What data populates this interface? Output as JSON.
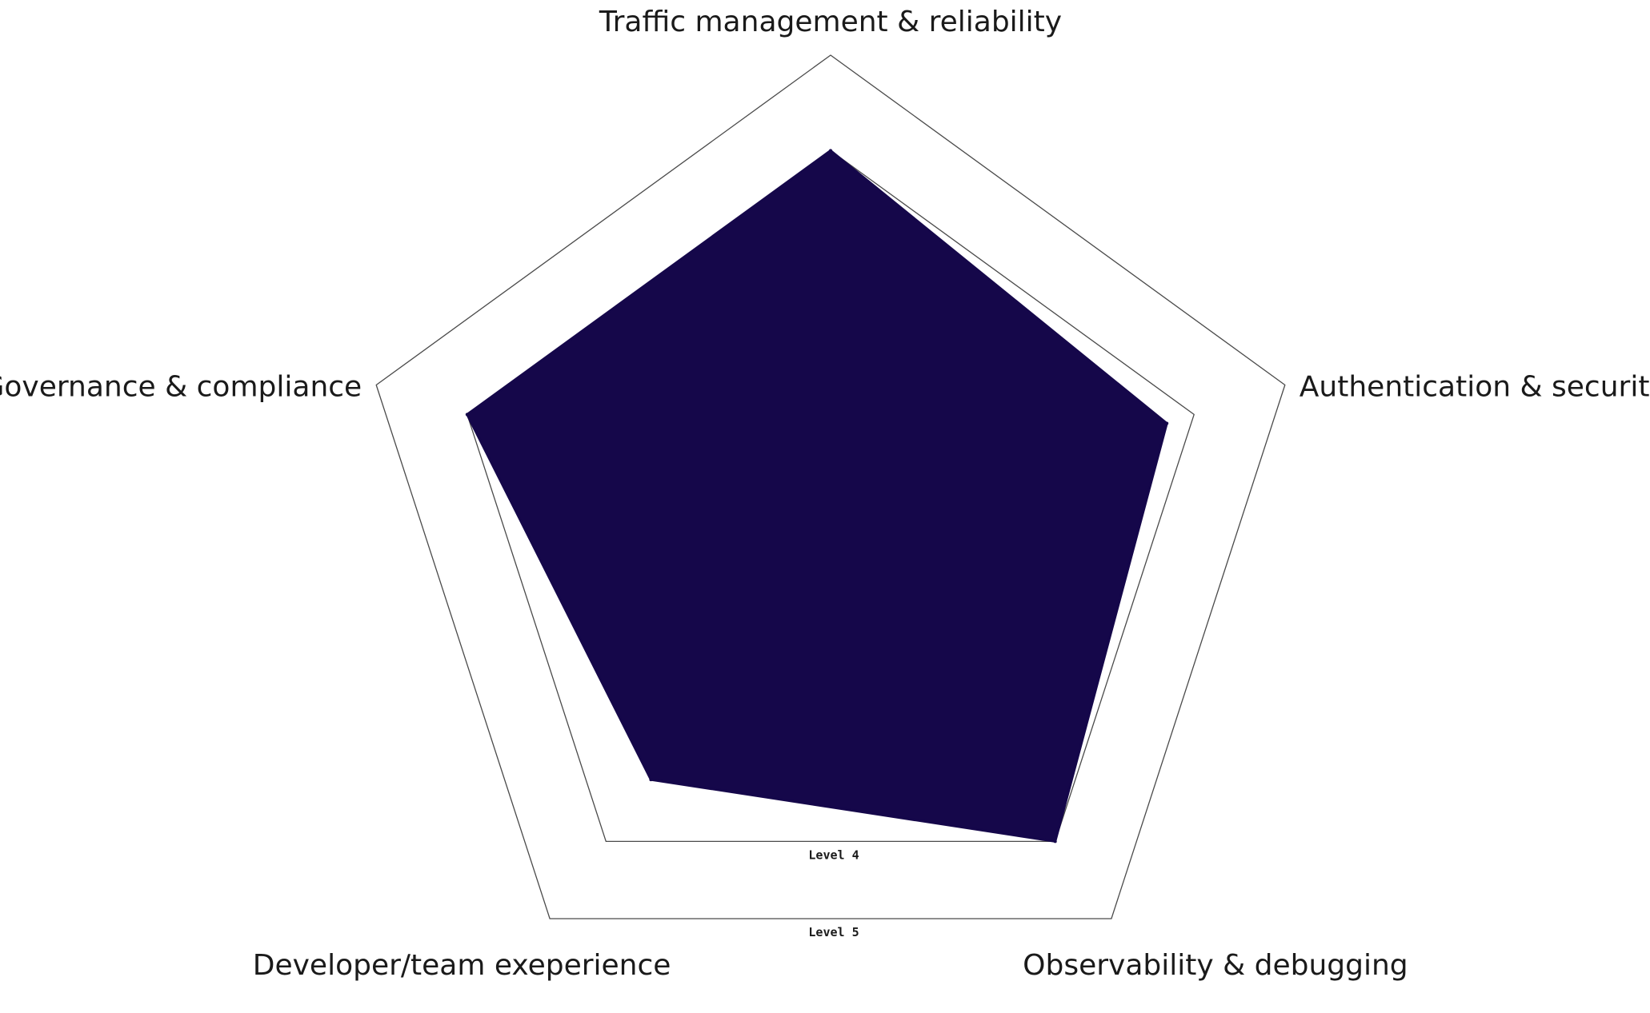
{
  "chart_data": {
    "type": "radar",
    "title": "",
    "axes": [
      "Traffic management & reliability",
      "Authentication & security",
      "Observability & debugging",
      "Developer/team exeperience",
      "Governance & compliance"
    ],
    "level_labels": [
      "Level 4",
      "Level 5"
    ],
    "rlim": [
      0,
      5
    ],
    "series": [
      {
        "values": [
          4,
          3.7,
          4,
          3.2,
          4
        ]
      }
    ],
    "colors": {
      "fill": "#15074a",
      "grid": "#4a4a4a"
    },
    "legend": "none"
  }
}
